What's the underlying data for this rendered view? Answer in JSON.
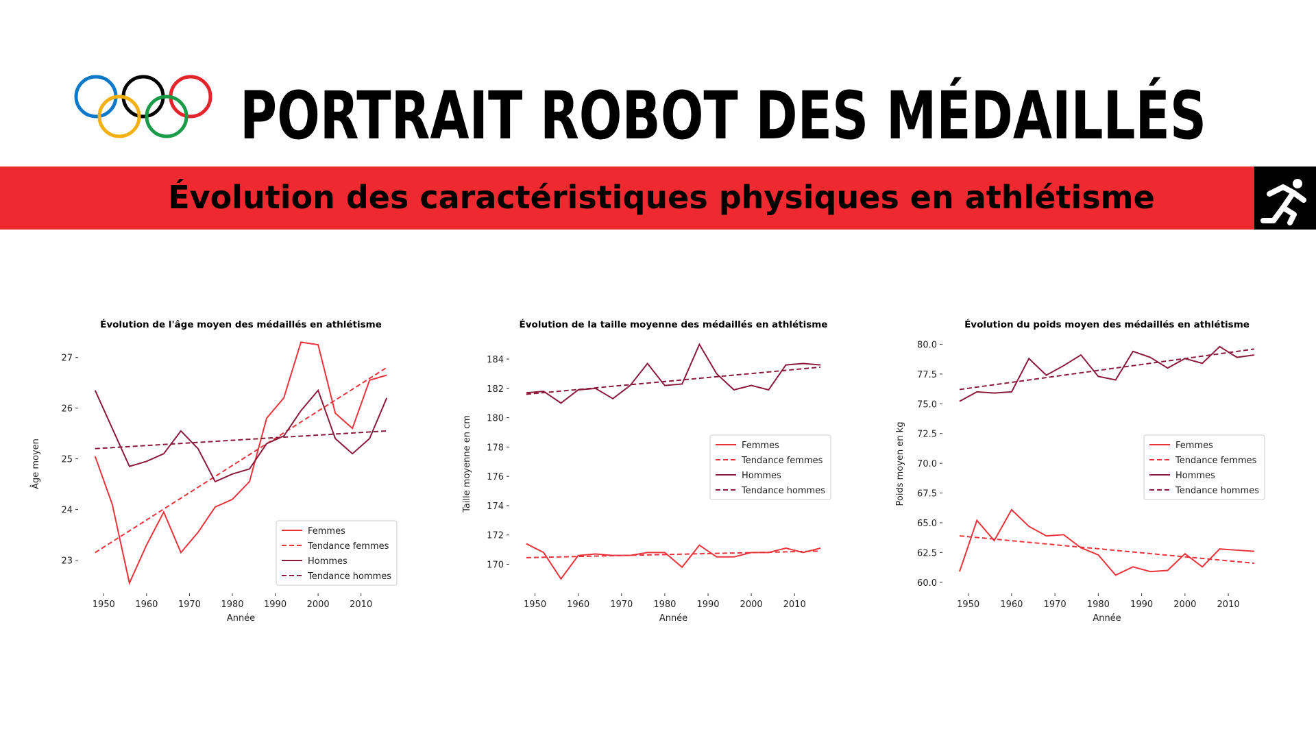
{
  "header": {
    "title": "PORTRAIT ROBOT DES MÉDAILLÉS",
    "subtitle": "Évolution des caractéristiques physiques en athlétisme"
  },
  "chart_data": [
    {
      "type": "line",
      "title": "Évolution de l'âge moyen des médaillés en athlétisme",
      "xlabel": "Année",
      "ylabel": "Âge moyen",
      "x": [
        1948,
        1952,
        1956,
        1960,
        1964,
        1968,
        1972,
        1976,
        1980,
        1984,
        1988,
        1992,
        1996,
        2000,
        2004,
        2008,
        2012,
        2016
      ],
      "xlim": [
        1945,
        2019
      ],
      "xticks": [
        1950,
        1960,
        1970,
        1980,
        1990,
        2000,
        2010
      ],
      "ylim": [
        22.4,
        27.4
      ],
      "yticks": [
        23,
        24,
        25,
        26,
        27
      ],
      "legend": "lower right",
      "series": [
        {
          "name": "Femmes",
          "color": "#e8333a",
          "dash": false,
          "values": [
            25.05,
            24.1,
            22.55,
            23.3,
            23.95,
            23.15,
            23.55,
            24.05,
            24.2,
            24.55,
            25.8,
            26.2,
            27.3,
            27.25,
            25.9,
            25.6,
            26.55,
            26.65
          ]
        },
        {
          "name": "Tendance femmes",
          "color": "#e8333a",
          "dash": true,
          "x": [
            1948,
            2016
          ],
          "values": [
            23.15,
            26.8
          ]
        },
        {
          "name": "Hommes",
          "color": "#8b1a3a",
          "dash": false,
          "values": [
            26.35,
            25.6,
            24.85,
            24.95,
            25.1,
            25.55,
            25.2,
            24.55,
            24.7,
            24.8,
            25.3,
            25.45,
            25.95,
            26.35,
            25.4,
            25.1,
            25.4,
            26.2
          ]
        },
        {
          "name": "Tendance hommes",
          "color": "#8b1a3a",
          "dash": true,
          "x": [
            1948,
            2016
          ],
          "values": [
            25.2,
            25.55
          ]
        }
      ]
    },
    {
      "type": "line",
      "title": "Évolution de la taille moyenne des médaillés en athlétisme",
      "xlabel": "Année",
      "ylabel": "Taille moyenne en cm",
      "x": [
        1948,
        1952,
        1956,
        1960,
        1964,
        1968,
        1972,
        1976,
        1980,
        1984,
        1988,
        1992,
        1996,
        2000,
        2004,
        2008,
        2012,
        2016
      ],
      "xlim": [
        1945,
        2019
      ],
      "xticks": [
        1950,
        1960,
        1970,
        1980,
        1990,
        2000,
        2010
      ],
      "ylim": [
        168.2,
        185.5
      ],
      "yticks": [
        170,
        172,
        174,
        176,
        178,
        180,
        182,
        184
      ],
      "legend": "center right",
      "series": [
        {
          "name": "Femmes",
          "color": "#e8333a",
          "dash": false,
          "values": [
            171.4,
            170.8,
            169.0,
            170.6,
            170.7,
            170.6,
            170.6,
            170.8,
            170.8,
            169.8,
            171.3,
            170.5,
            170.5,
            170.8,
            170.8,
            171.1,
            170.8,
            171.1
          ]
        },
        {
          "name": "Tendance femmes",
          "color": "#e8333a",
          "dash": true,
          "x": [
            1948,
            2016
          ],
          "values": [
            170.45,
            170.9
          ]
        },
        {
          "name": "Hommes",
          "color": "#8b1a3a",
          "dash": false,
          "values": [
            181.7,
            181.8,
            181.0,
            181.9,
            182.0,
            181.3,
            182.2,
            183.7,
            182.2,
            182.3,
            185.0,
            183.0,
            181.9,
            182.2,
            181.9,
            183.6,
            183.7,
            183.6
          ]
        },
        {
          "name": "Tendance hommes",
          "color": "#8b1a3a",
          "dash": true,
          "x": [
            1948,
            2016
          ],
          "values": [
            181.6,
            183.45
          ]
        }
      ]
    },
    {
      "type": "line",
      "title": "Évolution du poids moyen des médaillés en athlétisme",
      "xlabel": "Année",
      "ylabel": "Poids moyen en kg",
      "x": [
        1948,
        1952,
        1956,
        1960,
        1964,
        1968,
        1972,
        1976,
        1980,
        1984,
        1988,
        1992,
        1996,
        2000,
        2004,
        2008,
        2012,
        2016
      ],
      "xlim": [
        1945,
        2019
      ],
      "xticks": [
        1950,
        1960,
        1970,
        1980,
        1990,
        2000,
        2010
      ],
      "ylim": [
        59.3,
        80.6
      ],
      "yticks": [
        {
          "value": 60,
          "label": "60.0"
        },
        62.5,
        {
          "value": 65,
          "label": "65.0"
        },
        67.5,
        {
          "value": 70,
          "label": "70.0"
        },
        72.5,
        {
          "value": 75,
          "label": "75.0"
        },
        77.5,
        {
          "value": 80,
          "label": "80.0"
        }
      ],
      "legend": "center right",
      "series": [
        {
          "name": "Femmes",
          "color": "#e8333a",
          "dash": false,
          "values": [
            60.9,
            65.2,
            63.5,
            66.1,
            64.7,
            63.9,
            64.0,
            62.9,
            62.3,
            60.6,
            61.3,
            60.9,
            61.0,
            62.4,
            61.3,
            62.8,
            62.7,
            62.6
          ]
        },
        {
          "name": "Tendance femmes",
          "color": "#e8333a",
          "dash": true,
          "x": [
            1948,
            2016
          ],
          "values": [
            63.9,
            61.6
          ]
        },
        {
          "name": "Hommes",
          "color": "#8b1a3a",
          "dash": false,
          "values": [
            75.2,
            76.0,
            75.9,
            76.0,
            78.8,
            77.4,
            78.2,
            79.1,
            77.3,
            77.0,
            79.4,
            78.9,
            78.0,
            78.8,
            78.4,
            79.8,
            78.9,
            79.1
          ]
        },
        {
          "name": "Tendance hommes",
          "color": "#8b1a3a",
          "dash": true,
          "x": [
            1948,
            2016
          ],
          "values": [
            76.2,
            79.6
          ]
        }
      ]
    }
  ]
}
